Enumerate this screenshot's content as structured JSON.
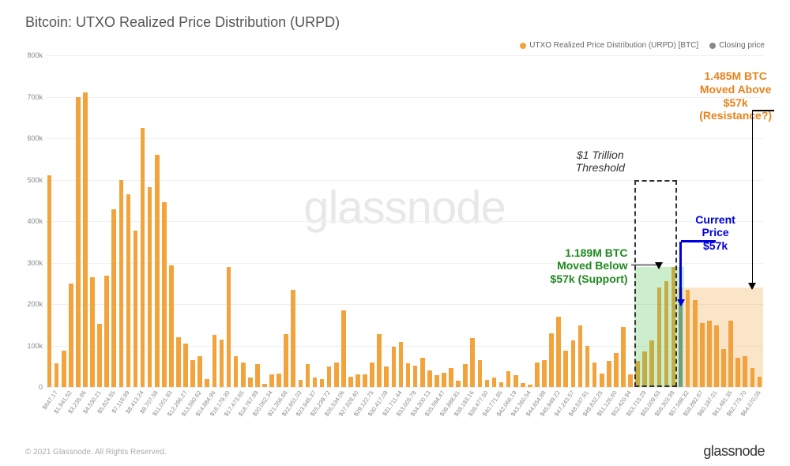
{
  "title": "Bitcoin: UTXO Realized Price Distribution (URPD)",
  "legend": {
    "series1": {
      "label": "UTXO Realized Price Distribution (URPD) [BTC]",
      "color": "#f2a33c"
    },
    "series2": {
      "label": "Closing price",
      "color": "#888888"
    }
  },
  "chart": {
    "type": "bar",
    "ylim": [
      0,
      800000
    ],
    "ytick_step": 100000,
    "y_format": "k",
    "bar_color": "#f2a33c",
    "closing_color": "#888888",
    "grid_color": "#f0f0f0",
    "background_color": "#ffffff",
    "title_fontsize": 18,
    "label_fontsize": 7.5,
    "bar_width_ratio": 0.62,
    "x_labels": [
      "$647.17",
      "$1,941.52",
      "$3,235.86",
      "$4,530.21",
      "$5,824.55",
      "$7,118.89",
      "$8,413.24",
      "$9,707.58",
      "$11,001.93",
      "$12,296.27",
      "$13,590.62",
      "$14,884.96",
      "$16,179.30",
      "$17,473.65",
      "$18,767.99",
      "$20,062.34",
      "$21,356.68",
      "$22,651.03",
      "$23,945.37",
      "$25,239.72",
      "$26,534.06",
      "$27,828.40",
      "$29,122.75",
      "$30,417.09",
      "$31,711.44",
      "$33,005.78",
      "$34,300.13",
      "$35,594.47",
      "$36,888.81",
      "$38,183.16",
      "$39,477.50",
      "$40,771.85",
      "$42,066.19",
      "$43,360.54",
      "$44,654.88",
      "$45,949.22",
      "$47,243.57",
      "$48,537.91",
      "$49,832.25",
      "$51,126.60",
      "$52,420.94",
      "$53,715.29",
      "$55,009.63",
      "$56,303.98",
      "$57,598.32",
      "$58,892.67",
      "$60,187.01",
      "$61,481.35",
      "$62,775.70",
      "$64,070.05"
    ],
    "values": [
      [
        510000,
        58000
      ],
      [
        88000,
        250000
      ],
      [
        700000,
        710000
      ],
      [
        265000,
        152000
      ],
      [
        268000,
        428000
      ],
      [
        500000,
        465000
      ],
      [
        378000,
        624000
      ],
      [
        482000,
        560000
      ],
      [
        446000,
        294000
      ],
      [
        120000,
        104000
      ],
      [
        65000,
        75000
      ],
      [
        20000,
        125000
      ],
      [
        115000,
        290000
      ],
      [
        75000,
        60000
      ],
      [
        22000,
        55000
      ],
      [
        8000,
        30000
      ],
      [
        32000,
        128000
      ],
      [
        235000,
        18000
      ],
      [
        55000,
        22000
      ],
      [
        20000,
        50000
      ],
      [
        60000,
        185000
      ],
      [
        25000,
        30000
      ],
      [
        30000,
        60000
      ],
      [
        128000,
        50000
      ],
      [
        98000,
        108000
      ],
      [
        58000,
        52000
      ],
      [
        70000,
        40000
      ],
      [
        28000,
        35000
      ],
      [
        46000,
        15000
      ],
      [
        55000,
        118000
      ],
      [
        65000,
        18000
      ],
      [
        22000,
        12000
      ],
      [
        38000,
        28000
      ],
      [
        10000,
        5000
      ],
      [
        60000,
        65000
      ],
      [
        130000,
        170000
      ],
      [
        88000,
        112000
      ],
      [
        148000,
        100000
      ],
      [
        60000,
        32000
      ],
      [
        62000,
        81000
      ],
      [
        145000,
        30000
      ],
      [
        62000,
        85000
      ],
      [
        112000,
        240000
      ],
      [
        255000,
        290000
      ],
      [
        240000,
        235000
      ],
      [
        210000,
        155000
      ],
      [
        160000,
        148000
      ],
      [
        92000,
        160000
      ],
      [
        70000,
        75000
      ],
      [
        46000,
        24000
      ]
    ],
    "closing_price_index": 88,
    "closing_price_value": 200000
  },
  "highlight": {
    "threshold_box": {
      "start_index": 82,
      "end_index": 88,
      "height_value": 500000
    },
    "green_shade": {
      "start_index": 82,
      "end_index": 89,
      "height_value": 290000
    },
    "orange_shade": {
      "start_index": 89,
      "end_index": 100,
      "height_value": 240000
    }
  },
  "annotations": {
    "threshold": {
      "line1": "$1 Trillion",
      "line2": "Threshold",
      "color": "#333333",
      "style": "italic"
    },
    "support": {
      "line1": "1.189M BTC",
      "line2": "Moved Below",
      "line3": "$57k (Support)",
      "color": "#1f8a1f"
    },
    "resistance": {
      "line1": "1.485M BTC",
      "line2": "Moved Above",
      "line3": "$57k (Resistance?)",
      "color": "#e8821a"
    },
    "current": {
      "line1": "Current",
      "line2": "Price $57k",
      "color": "#0000dd"
    }
  },
  "watermark": "glassnode",
  "footer": {
    "copyright": "© 2021 Glassnode. All Rights Reserved.",
    "brand": "glassnode"
  }
}
